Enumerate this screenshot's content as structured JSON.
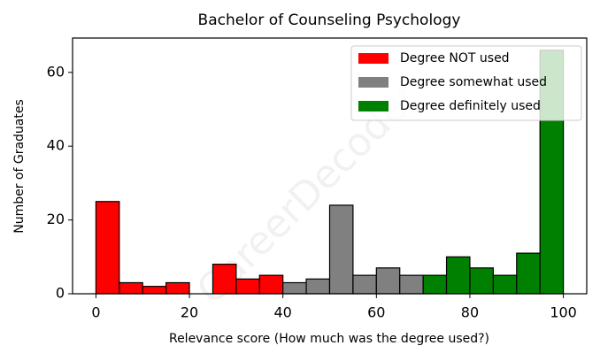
{
  "chart_data": {
    "type": "histogram",
    "title": "Bachelor of Counseling Psychology",
    "xlabel": "Relevance score (How much was the degree used?)",
    "ylabel": "Number of Graduates",
    "watermark": "CareerDecoder",
    "series": [
      {
        "name": "Degree NOT used",
        "color": "#ff0000",
        "bins": [
          0,
          5,
          10,
          15,
          20,
          25,
          30,
          35,
          40
        ],
        "values": [
          25,
          3,
          2,
          3,
          0,
          8,
          4,
          5
        ]
      },
      {
        "name": "Degree somewhat used",
        "color": "#808080",
        "bins": [
          40,
          45,
          50,
          55,
          60,
          65,
          70
        ],
        "values": [
          3,
          4,
          24,
          5,
          7,
          5
        ]
      },
      {
        "name": "Degree definitely used",
        "color": "#008000",
        "bins": [
          70,
          75,
          80,
          85,
          90,
          95,
          100
        ],
        "values": [
          5,
          10,
          7,
          5,
          11,
          66
        ]
      }
    ],
    "xlim": [
      -5,
      105
    ],
    "ylim": [
      0,
      69.3
    ],
    "xticks": [
      0,
      20,
      40,
      60,
      80,
      100
    ],
    "yticks": [
      0,
      20,
      40,
      60
    ],
    "legend": "upper right"
  }
}
